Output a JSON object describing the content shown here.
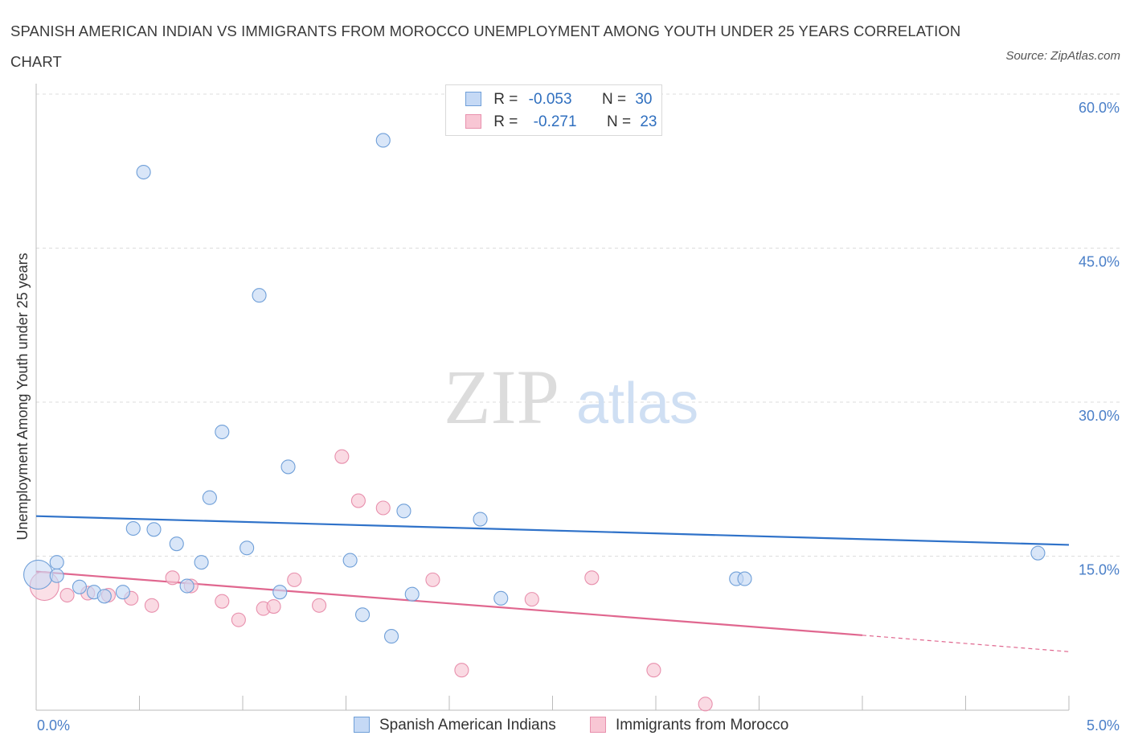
{
  "title": "SPANISH AMERICAN INDIAN VS IMMIGRANTS FROM MOROCCO UNEMPLOYMENT AMONG YOUTH UNDER 25 YEARS CORRELATION CHART",
  "source": "Source: ZipAtlas.com",
  "watermark": {
    "zip": "ZIP",
    "atlas": "atlas"
  },
  "legend": {
    "r_label": "R =",
    "n_label": "N =",
    "series": [
      {
        "r": "-0.053",
        "n": "30"
      },
      {
        "r": "-0.271",
        "n": "23"
      }
    ]
  },
  "colors": {
    "blue_fill": "#c5d9f5",
    "blue_stroke": "#6f9fd8",
    "blue_line": "#2f72c9",
    "pink_fill": "#f8c6d4",
    "pink_stroke": "#e890ad",
    "pink_line": "#e0678f",
    "tick_text": "#4a7fc8"
  },
  "chart_data": {
    "type": "scatter",
    "title": "SPANISH AMERICAN INDIAN VS IMMIGRANTS FROM MOROCCO UNEMPLOYMENT AMONG YOUTH UNDER 25 YEARS CORRELATION CHART",
    "xlabel": "",
    "ylabel": "Unemployment Among Youth under 25 years",
    "xlim": [
      0,
      5
    ],
    "ylim": [
      0,
      60
    ],
    "x_tick_labels": [
      "0.0%",
      "5.0%"
    ],
    "y_ticks": [
      15,
      30,
      45,
      60
    ],
    "y_tick_labels": [
      "15.0%",
      "30.0%",
      "45.0%",
      "60.0%"
    ],
    "series": [
      {
        "name": "Spanish American Indians",
        "color": "blue",
        "r": -0.053,
        "n": 30,
        "trend": {
          "x": [
            0,
            5
          ],
          "y": [
            18.9,
            16.1
          ]
        },
        "points": [
          {
            "x": 0.01,
            "y": 13.2,
            "big": true
          },
          {
            "x": 0.1,
            "y": 14.4
          },
          {
            "x": 0.1,
            "y": 13.1
          },
          {
            "x": 0.21,
            "y": 12.0
          },
          {
            "x": 0.28,
            "y": 11.5
          },
          {
            "x": 0.33,
            "y": 11.1
          },
          {
            "x": 0.42,
            "y": 11.5
          },
          {
            "x": 0.47,
            "y": 17.7
          },
          {
            "x": 0.52,
            "y": 52.4
          },
          {
            "x": 0.57,
            "y": 17.6
          },
          {
            "x": 0.68,
            "y": 16.2
          },
          {
            "x": 0.73,
            "y": 12.1
          },
          {
            "x": 0.8,
            "y": 14.4
          },
          {
            "x": 0.84,
            "y": 20.7
          },
          {
            "x": 0.9,
            "y": 27.1
          },
          {
            "x": 1.02,
            "y": 15.8
          },
          {
            "x": 1.08,
            "y": 40.4
          },
          {
            "x": 1.18,
            "y": 11.5
          },
          {
            "x": 1.22,
            "y": 23.7
          },
          {
            "x": 1.52,
            "y": 14.6
          },
          {
            "x": 1.58,
            "y": 9.3
          },
          {
            "x": 1.68,
            "y": 55.5
          },
          {
            "x": 1.72,
            "y": 7.2
          },
          {
            "x": 1.78,
            "y": 19.4
          },
          {
            "x": 1.82,
            "y": 11.3
          },
          {
            "x": 2.15,
            "y": 18.6
          },
          {
            "x": 2.25,
            "y": 10.9
          },
          {
            "x": 3.39,
            "y": 12.8
          },
          {
            "x": 3.43,
            "y": 12.8
          },
          {
            "x": 4.85,
            "y": 15.3
          }
        ]
      },
      {
        "name": "Immigrants from Morocco",
        "color": "pink",
        "r": -0.271,
        "n": 23,
        "trend": {
          "x": [
            0,
            4
          ],
          "y": [
            13.5,
            7.3
          ]
        },
        "trend_dashed": {
          "x": [
            4,
            5
          ],
          "y": [
            7.3,
            5.7
          ]
        },
        "points": [
          {
            "x": 0.04,
            "y": 12.1,
            "big": true
          },
          {
            "x": 0.15,
            "y": 11.2
          },
          {
            "x": 0.25,
            "y": 11.4
          },
          {
            "x": 0.35,
            "y": 11.2
          },
          {
            "x": 0.46,
            "y": 10.9
          },
          {
            "x": 0.56,
            "y": 10.2
          },
          {
            "x": 0.66,
            "y": 12.9
          },
          {
            "x": 0.75,
            "y": 12.1
          },
          {
            "x": 0.9,
            "y": 10.6
          },
          {
            "x": 0.98,
            "y": 8.8
          },
          {
            "x": 1.1,
            "y": 9.9
          },
          {
            "x": 1.15,
            "y": 10.1
          },
          {
            "x": 1.25,
            "y": 12.7
          },
          {
            "x": 1.37,
            "y": 10.2
          },
          {
            "x": 1.48,
            "y": 24.7
          },
          {
            "x": 1.56,
            "y": 20.4
          },
          {
            "x": 1.68,
            "y": 19.7
          },
          {
            "x": 1.92,
            "y": 12.7
          },
          {
            "x": 2.06,
            "y": 3.9
          },
          {
            "x": 2.4,
            "y": 10.8
          },
          {
            "x": 2.69,
            "y": 12.9
          },
          {
            "x": 2.99,
            "y": 3.9
          },
          {
            "x": 3.24,
            "y": 0.6
          }
        ]
      }
    ]
  }
}
